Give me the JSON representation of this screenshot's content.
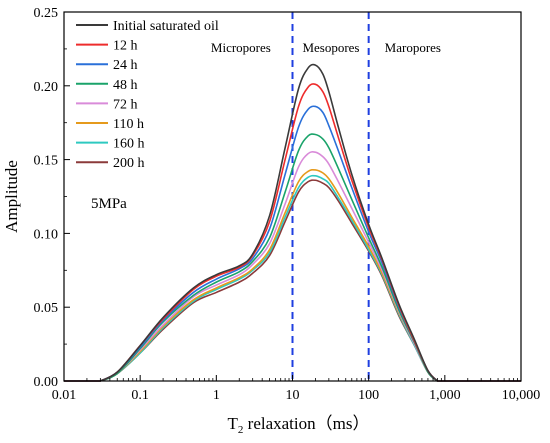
{
  "chart_data": {
    "type": "line",
    "title": "",
    "xlabel": {
      "main": "T",
      "sub": "2",
      "rest": " relaxation（ms）"
    },
    "ylabel": "Amplitude",
    "xscale": "log",
    "xlim": [
      0.01,
      10000
    ],
    "ylim": [
      0,
      0.25
    ],
    "xticks": [
      0.01,
      0.1,
      1,
      10,
      100,
      1000,
      10000
    ],
    "xtick_labels": [
      "0.01",
      "0.1",
      "1",
      "10",
      "100",
      "1,000",
      "10,000"
    ],
    "yticks": [
      0,
      0.05,
      0.1,
      0.15,
      0.2,
      0.25
    ],
    "ytick_labels": [
      "0.00",
      "0.05",
      "0.10",
      "0.15",
      "0.20",
      "0.25"
    ],
    "grid": false,
    "legend_position": "top-left",
    "annotation": "5MPa",
    "region_lines": [
      10,
      100
    ],
    "region_line_color": "#1f3fe0",
    "region_labels": [
      "Micropores",
      "Mesopores",
      "Maropores"
    ],
    "x": [
      0.03,
      0.05,
      0.1,
      0.2,
      0.5,
      1,
      2,
      3,
      5,
      8,
      12,
      16,
      20,
      25,
      30,
      40,
      60,
      100,
      150,
      250,
      400,
      600,
      800
    ],
    "series": [
      {
        "name": "Initial saturated oil",
        "color": "#3a3a3a",
        "values": [
          0,
          0.006,
          0.024,
          0.043,
          0.063,
          0.072,
          0.078,
          0.086,
          0.112,
          0.158,
          0.198,
          0.212,
          0.214,
          0.208,
          0.196,
          0.172,
          0.14,
          0.106,
          0.083,
          0.052,
          0.028,
          0.007,
          0
        ]
      },
      {
        "name": "12 h",
        "color": "#ee2c2c",
        "values": [
          0,
          0.006,
          0.024,
          0.042,
          0.062,
          0.071,
          0.077,
          0.085,
          0.108,
          0.15,
          0.186,
          0.199,
          0.201,
          0.196,
          0.186,
          0.165,
          0.136,
          0.104,
          0.082,
          0.051,
          0.027,
          0.007,
          0
        ]
      },
      {
        "name": "24 h",
        "color": "#2a70d9",
        "values": [
          0,
          0.006,
          0.023,
          0.041,
          0.06,
          0.069,
          0.076,
          0.083,
          0.103,
          0.14,
          0.172,
          0.184,
          0.186,
          0.182,
          0.173,
          0.156,
          0.131,
          0.101,
          0.08,
          0.05,
          0.027,
          0.007,
          0
        ]
      },
      {
        "name": "48 h",
        "color": "#1aa36a",
        "values": [
          0,
          0.005,
          0.022,
          0.04,
          0.058,
          0.067,
          0.074,
          0.081,
          0.097,
          0.128,
          0.156,
          0.166,
          0.167,
          0.164,
          0.158,
          0.144,
          0.123,
          0.097,
          0.077,
          0.048,
          0.026,
          0.006,
          0
        ]
      },
      {
        "name": "72 h",
        "color": "#d98bd9",
        "values": [
          0,
          0.005,
          0.021,
          0.038,
          0.057,
          0.065,
          0.072,
          0.079,
          0.093,
          0.12,
          0.145,
          0.154,
          0.155,
          0.152,
          0.147,
          0.135,
          0.117,
          0.094,
          0.075,
          0.047,
          0.025,
          0.006,
          0
        ]
      },
      {
        "name": "110 h",
        "color": "#e59a1c",
        "values": [
          0,
          0.005,
          0.02,
          0.037,
          0.055,
          0.063,
          0.07,
          0.076,
          0.089,
          0.114,
          0.135,
          0.142,
          0.143,
          0.141,
          0.137,
          0.127,
          0.111,
          0.091,
          0.073,
          0.046,
          0.025,
          0.006,
          0
        ]
      },
      {
        "name": "160 h",
        "color": "#2ec9c0",
        "values": [
          0,
          0.005,
          0.019,
          0.036,
          0.054,
          0.062,
          0.069,
          0.075,
          0.087,
          0.111,
          0.131,
          0.138,
          0.139,
          0.137,
          0.134,
          0.124,
          0.109,
          0.089,
          0.072,
          0.045,
          0.024,
          0.006,
          0
        ]
      },
      {
        "name": "200 h",
        "color": "#8b3a3a",
        "values": [
          0,
          0.005,
          0.019,
          0.035,
          0.053,
          0.06,
          0.067,
          0.073,
          0.085,
          0.108,
          0.128,
          0.135,
          0.136,
          0.134,
          0.131,
          0.122,
          0.107,
          0.088,
          0.071,
          0.044,
          0.024,
          0.006,
          0
        ]
      }
    ]
  }
}
